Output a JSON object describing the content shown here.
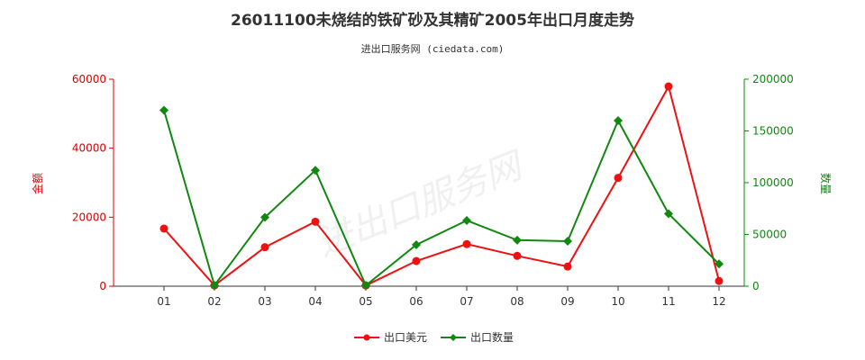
{
  "chart_data": {
    "type": "line",
    "title": "26011100未烧结的铁矿砂及其精矿2005年出口月度走势",
    "subtitle": "进出口服务网 (ciedata.com)",
    "categories": [
      "01",
      "02",
      "03",
      "04",
      "05",
      "06",
      "07",
      "08",
      "09",
      "10",
      "11",
      "12"
    ],
    "y_left": {
      "label": "金额",
      "ticks": [
        "0",
        "20000",
        "40000",
        "60000"
      ],
      "range": [
        0,
        60000
      ],
      "color": "#dd0000"
    },
    "y_right": {
      "label": "数量",
      "ticks": [
        "0",
        "50000",
        "100000",
        "150000",
        "200000"
      ],
      "range": [
        0,
        200000
      ],
      "color": "#118811"
    },
    "series": [
      {
        "name": "出口美元",
        "axis": "left",
        "color": "#ee1111",
        "values": [
          16700,
          200,
          11300,
          18700,
          200,
          7300,
          12200,
          8800,
          5700,
          31400,
          57900,
          1500
        ]
      },
      {
        "name": "出口数量",
        "axis": "right",
        "color": "#118811",
        "values": [
          170000,
          800,
          66500,
          112000,
          800,
          40000,
          63500,
          44500,
          43500,
          160000,
          70000,
          21500
        ]
      }
    ],
    "grid": false,
    "legend_position": "bottom-center",
    "watermark": "进出口服务网"
  }
}
